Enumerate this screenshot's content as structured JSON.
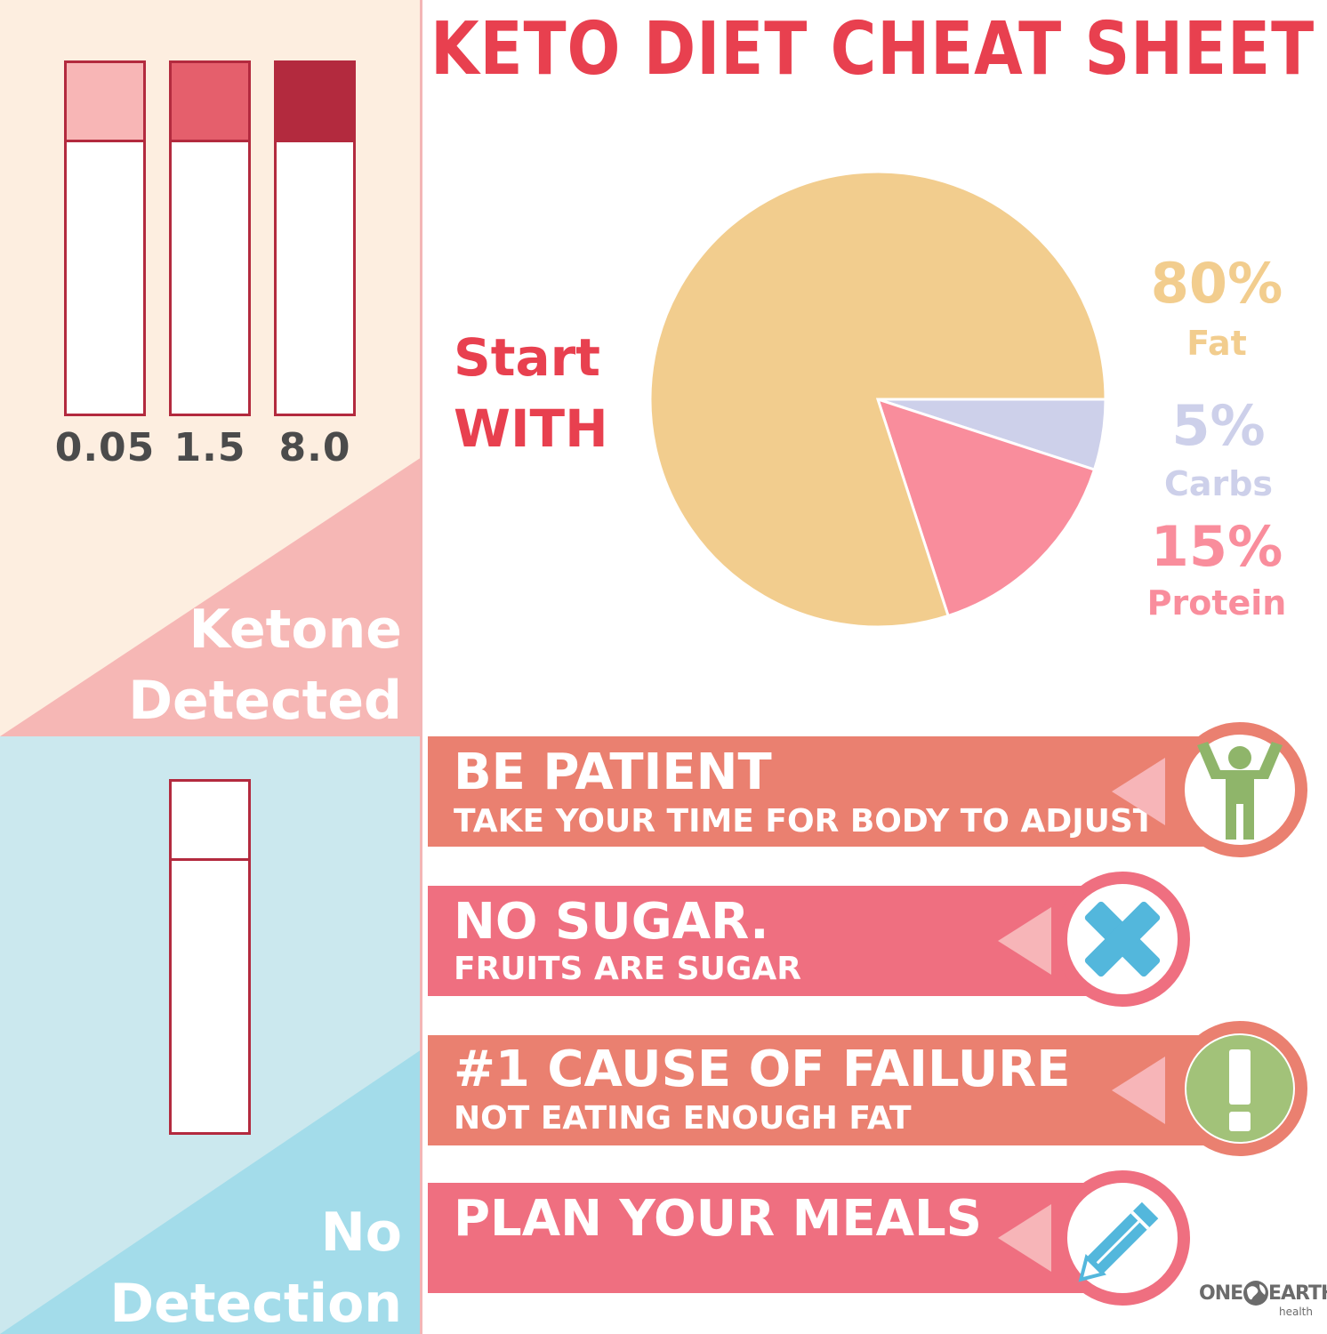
{
  "title": "KETO DIET CHEAT SHEET",
  "colors": {
    "accent": "#e8404f",
    "fat": "#f2cd8e",
    "carbs": "#cdd0ea",
    "protein": "#f98d9c",
    "left_top_bg": "#fdeee0",
    "left_top_diag": "#f6b7b5",
    "left_bottom_bg": "#cbe8ee",
    "left_bottom_diag": "#a3dcea",
    "tip_salmon": "#ea8070",
    "tip_pink": "#ef6f80",
    "strip_border": "#b32a3e"
  },
  "ketone_strips": {
    "labels": [
      "0.05",
      "1.5",
      "8.0"
    ],
    "pad_colors": [
      "#f8b6b6",
      "#e55f6c",
      "#b32a3e"
    ]
  },
  "side_labels": {
    "ketone_line1": "Ketone",
    "ketone_line2": "Detected",
    "no_line1": "No",
    "no_line2": "Detection"
  },
  "start_with": {
    "line1": "Start",
    "line2": "WITH"
  },
  "chart_data": {
    "type": "pie",
    "title": "",
    "slices": [
      {
        "label": "Fat",
        "value": 80,
        "color": "#f2cd8e"
      },
      {
        "label": "Carbs",
        "value": 5,
        "color": "#cdd0ea"
      },
      {
        "label": "Protein",
        "value": 15,
        "color": "#f98d9c"
      }
    ],
    "legend": [
      {
        "pct": "80%",
        "name": "Fat",
        "color": "#f2cd8e"
      },
      {
        "pct": "5%",
        "name": "Carbs",
        "color": "#cdd0ea"
      },
      {
        "pct": "15%",
        "name": "Protein",
        "color": "#f98d9c"
      }
    ]
  },
  "tips": [
    {
      "head": "BE PATIENT",
      "sub": "TAKE YOUR TIME FOR BODY TO ADJUST",
      "icon": "person-arms-up-icon",
      "icon_color": "#8fb56a"
    },
    {
      "head": "NO SUGAR.",
      "sub": "FRUITS ARE SUGAR",
      "icon": "x-mark-icon",
      "icon_color": "#53b7dc"
    },
    {
      "head": "#1 CAUSE OF FAILURE",
      "sub": "NOT EATING ENOUGH FAT",
      "icon": "exclamation-icon",
      "icon_color": "#a2c279"
    },
    {
      "head": "PLAN YOUR MEALS",
      "sub": "",
      "icon": "pencil-icon",
      "icon_color": "#53b7dc"
    }
  ],
  "logo": {
    "brand_left": "ONE",
    "brand_right": "EARTH",
    "sub": "health",
    "icon": "globe-icon"
  }
}
